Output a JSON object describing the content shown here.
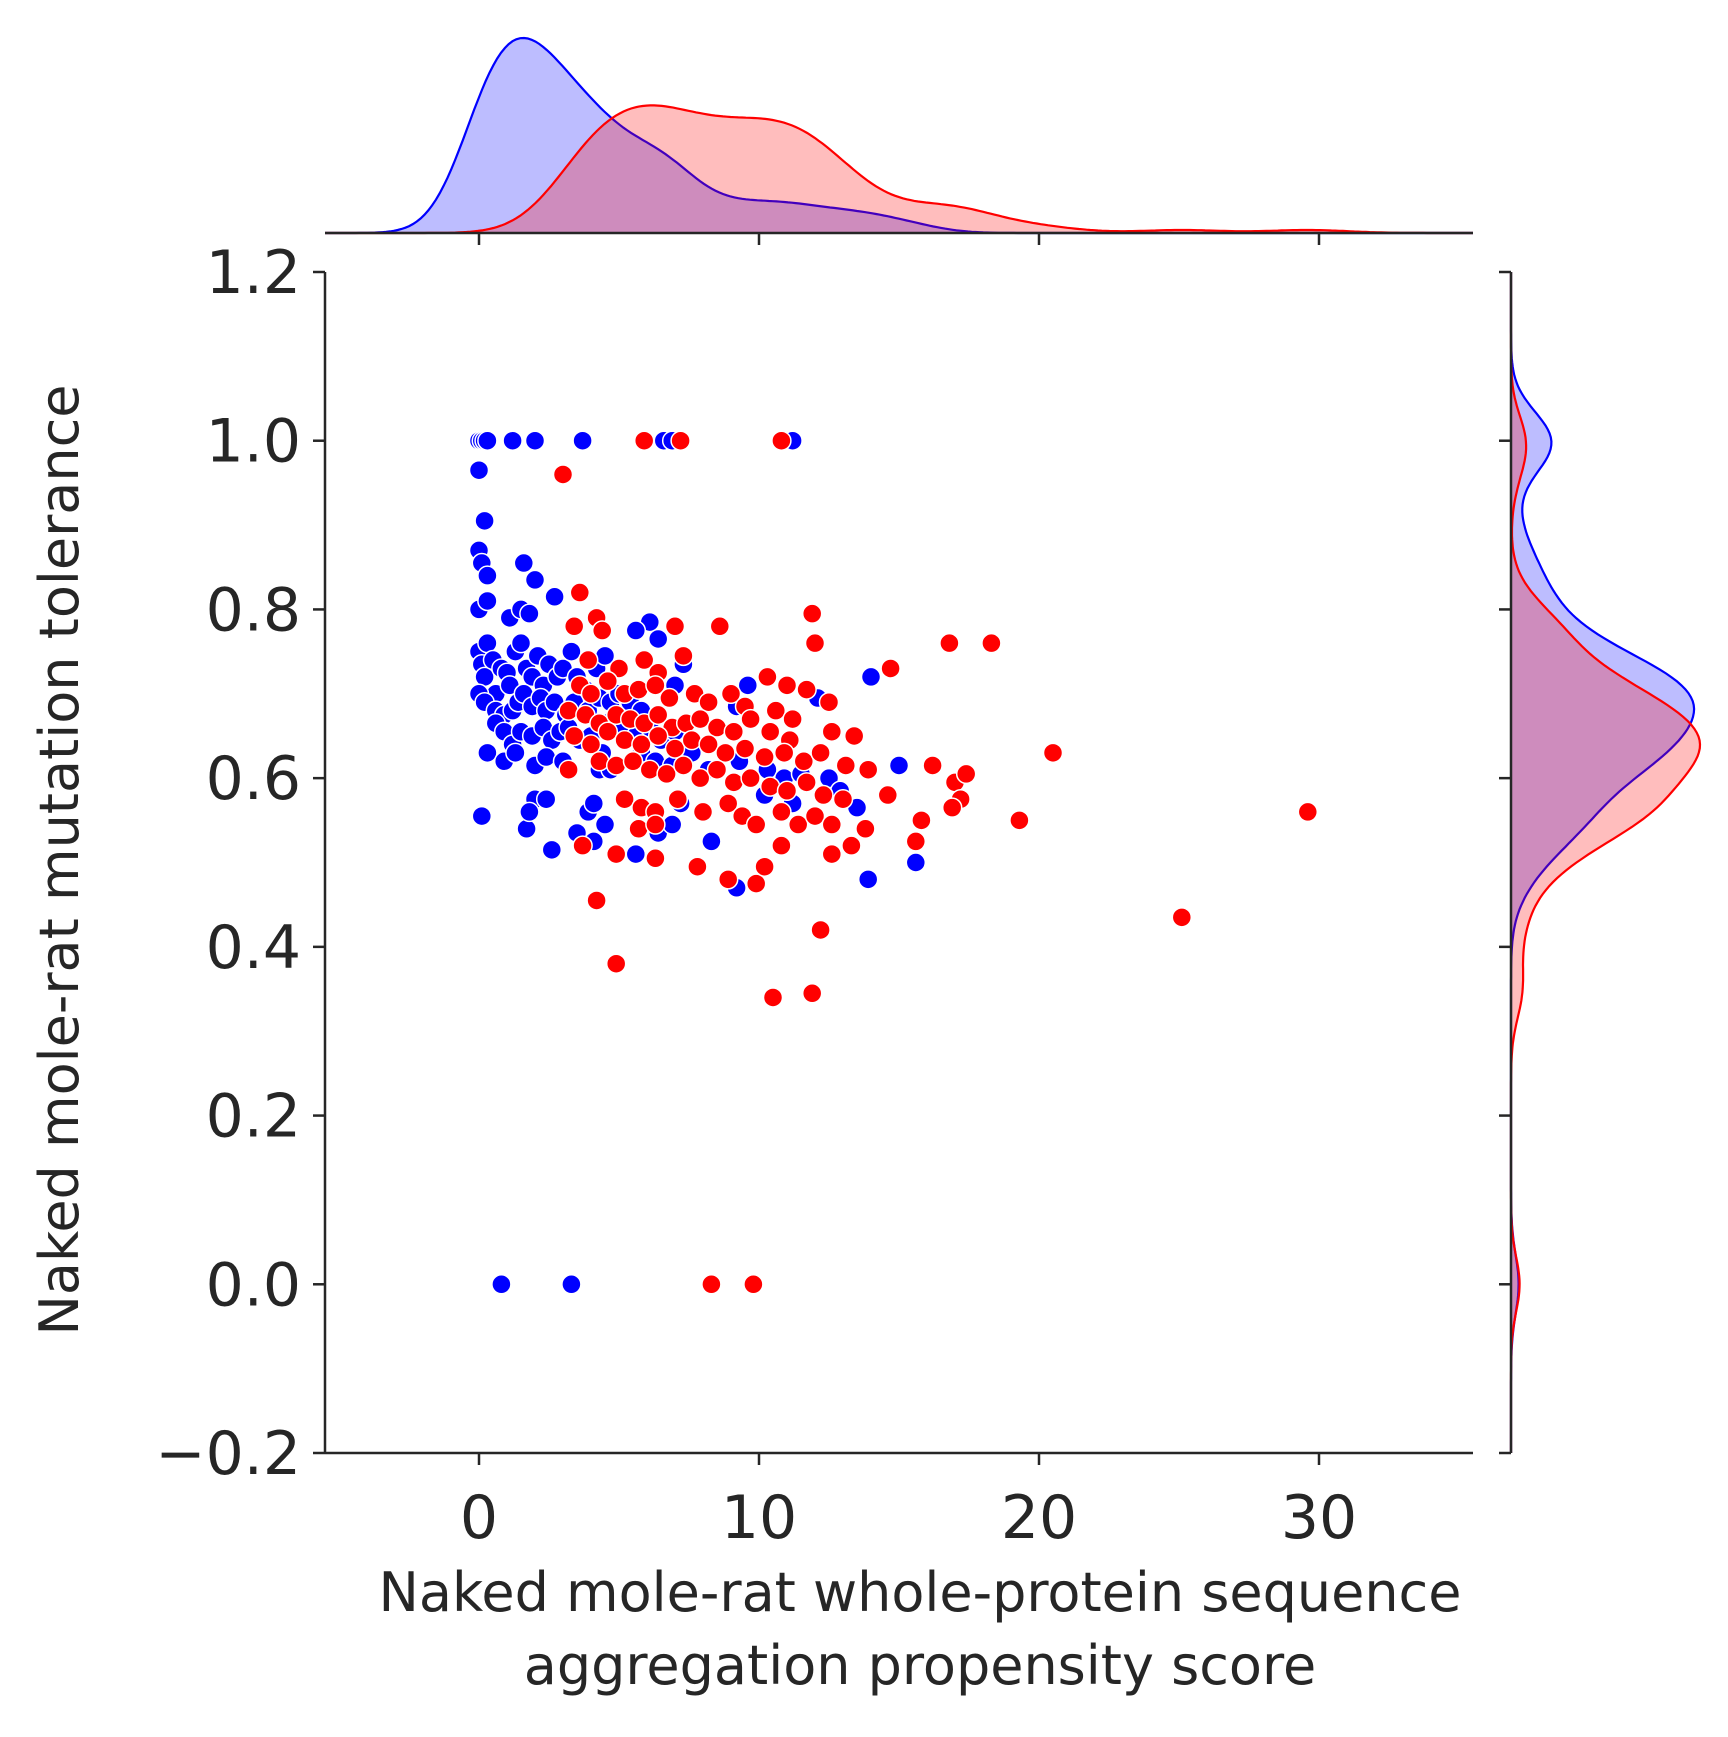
{
  "chart_data": {
    "type": "scatter",
    "title": "",
    "xlabel_lines": [
      "Naked mole-rat whole-protein sequence",
      "aggregation propensity score"
    ],
    "ylabel": "Naked mole-rat mutation tolerance",
    "xlim": [
      -5.5,
      35.5
    ],
    "ylim": [
      -0.2,
      1.2
    ],
    "x_ticks": [
      0,
      10,
      20,
      30
    ],
    "x_tick_labels": [
      "0",
      "10",
      "20",
      "30"
    ],
    "y_ticks": [
      -0.2,
      0.0,
      0.2,
      0.4,
      0.6,
      0.8,
      1.0,
      1.2
    ],
    "y_tick_labels": [
      "−0.2",
      "0.0",
      "0.2",
      "0.4",
      "0.6",
      "0.8",
      "1.0",
      "1.2"
    ],
    "grid": false,
    "legend": "none",
    "marginals": {
      "top": "kde-x",
      "right": "kde-y"
    },
    "series": [
      {
        "color": "#0000ff",
        "points": [
          [
            0.0,
            1.0
          ],
          [
            0.1,
            1.0
          ],
          [
            0.2,
            1.0
          ],
          [
            0.3,
            1.0
          ],
          [
            1.2,
            1.0
          ],
          [
            2.0,
            1.0
          ],
          [
            3.7,
            1.0
          ],
          [
            6.6,
            1.0
          ],
          [
            6.9,
            1.0
          ],
          [
            11.2,
            1.0
          ],
          [
            0.0,
            0.965
          ],
          [
            0.2,
            0.905
          ],
          [
            0.0,
            0.87
          ],
          [
            0.1,
            0.855
          ],
          [
            0.3,
            0.84
          ],
          [
            1.6,
            0.855
          ],
          [
            2.0,
            0.835
          ],
          [
            0.0,
            0.8
          ],
          [
            0.3,
            0.81
          ],
          [
            1.1,
            0.79
          ],
          [
            1.5,
            0.8
          ],
          [
            1.8,
            0.795
          ],
          [
            2.7,
            0.815
          ],
          [
            0.0,
            0.75
          ],
          [
            0.1,
            0.735
          ],
          [
            0.2,
            0.72
          ],
          [
            0.3,
            0.76
          ],
          [
            0.5,
            0.74
          ],
          [
            0.6,
            0.7
          ],
          [
            0.8,
            0.73
          ],
          [
            1.0,
            0.725
          ],
          [
            1.1,
            0.71
          ],
          [
            1.3,
            0.75
          ],
          [
            1.5,
            0.76
          ],
          [
            1.7,
            0.73
          ],
          [
            1.9,
            0.72
          ],
          [
            2.1,
            0.745
          ],
          [
            2.3,
            0.71
          ],
          [
            2.5,
            0.735
          ],
          [
            2.8,
            0.72
          ],
          [
            3.0,
            0.73
          ],
          [
            3.3,
            0.75
          ],
          [
            3.5,
            0.72
          ],
          [
            3.8,
            0.705
          ],
          [
            4.2,
            0.73
          ],
          [
            4.5,
            0.745
          ],
          [
            0.0,
            0.7
          ],
          [
            0.2,
            0.69
          ],
          [
            0.6,
            0.68
          ],
          [
            0.9,
            0.675
          ],
          [
            1.2,
            0.68
          ],
          [
            1.4,
            0.69
          ],
          [
            1.6,
            0.7
          ],
          [
            1.9,
            0.685
          ],
          [
            2.2,
            0.695
          ],
          [
            2.4,
            0.68
          ],
          [
            2.7,
            0.69
          ],
          [
            3.1,
            0.675
          ],
          [
            3.4,
            0.69
          ],
          [
            3.9,
            0.68
          ],
          [
            4.3,
            0.695
          ],
          [
            4.7,
            0.69
          ],
          [
            5.0,
            0.7
          ],
          [
            5.4,
            0.69
          ],
          [
            5.8,
            0.68
          ],
          [
            0.6,
            0.665
          ],
          [
            0.9,
            0.655
          ],
          [
            1.2,
            0.64
          ],
          [
            1.5,
            0.655
          ],
          [
            1.9,
            0.65
          ],
          [
            2.3,
            0.66
          ],
          [
            2.6,
            0.645
          ],
          [
            2.9,
            0.655
          ],
          [
            3.2,
            0.66
          ],
          [
            3.6,
            0.645
          ],
          [
            4.0,
            0.65
          ],
          [
            4.5,
            0.665
          ],
          [
            5.1,
            0.655
          ],
          [
            5.6,
            0.65
          ],
          [
            6.1,
            0.66
          ],
          [
            6.5,
            0.645
          ],
          [
            7.0,
            0.655
          ],
          [
            0.3,
            0.63
          ],
          [
            0.9,
            0.62
          ],
          [
            1.3,
            0.63
          ],
          [
            2.0,
            0.615
          ],
          [
            2.4,
            0.625
          ],
          [
            3.0,
            0.62
          ],
          [
            4.3,
            0.61
          ],
          [
            5.8,
            0.63
          ],
          [
            6.3,
            0.62
          ],
          [
            6.9,
            0.615
          ],
          [
            7.6,
            0.63
          ],
          [
            8.2,
            0.61
          ],
          [
            9.3,
            0.62
          ],
          [
            10.3,
            0.61
          ],
          [
            10.9,
            0.6
          ],
          [
            11.5,
            0.605
          ],
          [
            12.5,
            0.6
          ],
          [
            0.1,
            0.555
          ],
          [
            1.7,
            0.54
          ],
          [
            2.0,
            0.575
          ],
          [
            2.4,
            0.575
          ],
          [
            1.8,
            0.56
          ],
          [
            2.6,
            0.515
          ],
          [
            3.5,
            0.535
          ],
          [
            3.9,
            0.56
          ],
          [
            4.1,
            0.57
          ],
          [
            4.5,
            0.545
          ],
          [
            4.1,
            0.525
          ],
          [
            5.6,
            0.51
          ],
          [
            6.4,
            0.535
          ],
          [
            6.9,
            0.545
          ],
          [
            7.2,
            0.57
          ],
          [
            8.3,
            0.525
          ],
          [
            9.2,
            0.47
          ],
          [
            10.2,
            0.58
          ],
          [
            11.2,
            0.57
          ],
          [
            12.9,
            0.585
          ],
          [
            13.5,
            0.565
          ],
          [
            13.9,
            0.48
          ],
          [
            15.6,
            0.5
          ],
          [
            15.0,
            0.615
          ],
          [
            14.0,
            0.72
          ],
          [
            12.1,
            0.695
          ],
          [
            9.6,
            0.71
          ],
          [
            6.1,
            0.785
          ],
          [
            6.4,
            0.765
          ],
          [
            5.6,
            0.775
          ],
          [
            7.0,
            0.71
          ],
          [
            7.3,
            0.735
          ],
          [
            9.2,
            0.685
          ],
          [
            4.4,
            0.63
          ],
          [
            4.7,
            0.61
          ],
          [
            0.8,
            0.0
          ],
          [
            3.3,
            0.0
          ]
        ]
      },
      {
        "color": "#ff0000",
        "points": [
          [
            5.9,
            1.0
          ],
          [
            7.2,
            1.0
          ],
          [
            10.8,
            1.0
          ],
          [
            3.0,
            0.96
          ],
          [
            3.6,
            0.82
          ],
          [
            4.2,
            0.79
          ],
          [
            3.4,
            0.78
          ],
          [
            4.4,
            0.775
          ],
          [
            7.0,
            0.78
          ],
          [
            8.6,
            0.78
          ],
          [
            11.9,
            0.795
          ],
          [
            12.0,
            0.76
          ],
          [
            16.8,
            0.76
          ],
          [
            18.3,
            0.76
          ],
          [
            14.7,
            0.73
          ],
          [
            3.9,
            0.74
          ],
          [
            5.0,
            0.73
          ],
          [
            5.9,
            0.74
          ],
          [
            6.4,
            0.725
          ],
          [
            7.3,
            0.745
          ],
          [
            9.0,
            0.7
          ],
          [
            10.3,
            0.72
          ],
          [
            11.0,
            0.71
          ],
          [
            11.7,
            0.705
          ],
          [
            12.5,
            0.69
          ],
          [
            3.6,
            0.71
          ],
          [
            4.0,
            0.7
          ],
          [
            4.6,
            0.715
          ],
          [
            5.2,
            0.7
          ],
          [
            5.7,
            0.705
          ],
          [
            6.3,
            0.71
          ],
          [
            6.8,
            0.695
          ],
          [
            7.7,
            0.7
          ],
          [
            8.2,
            0.69
          ],
          [
            9.5,
            0.685
          ],
          [
            10.6,
            0.68
          ],
          [
            11.2,
            0.67
          ],
          [
            12.6,
            0.655
          ],
          [
            13.4,
            0.65
          ],
          [
            3.2,
            0.68
          ],
          [
            3.8,
            0.675
          ],
          [
            4.3,
            0.665
          ],
          [
            4.9,
            0.675
          ],
          [
            5.4,
            0.67
          ],
          [
            5.9,
            0.665
          ],
          [
            6.4,
            0.675
          ],
          [
            6.9,
            0.66
          ],
          [
            7.4,
            0.665
          ],
          [
            7.9,
            0.67
          ],
          [
            8.5,
            0.66
          ],
          [
            9.1,
            0.655
          ],
          [
            9.7,
            0.67
          ],
          [
            10.4,
            0.655
          ],
          [
            11.1,
            0.645
          ],
          [
            3.4,
            0.65
          ],
          [
            4.0,
            0.64
          ],
          [
            4.6,
            0.655
          ],
          [
            5.2,
            0.645
          ],
          [
            5.8,
            0.64
          ],
          [
            6.4,
            0.65
          ],
          [
            7.0,
            0.635
          ],
          [
            7.6,
            0.645
          ],
          [
            8.2,
            0.64
          ],
          [
            8.8,
            0.63
          ],
          [
            9.5,
            0.635
          ],
          [
            10.2,
            0.625
          ],
          [
            10.9,
            0.63
          ],
          [
            11.6,
            0.62
          ],
          [
            12.2,
            0.63
          ],
          [
            13.1,
            0.615
          ],
          [
            16.2,
            0.615
          ],
          [
            20.5,
            0.63
          ],
          [
            4.3,
            0.62
          ],
          [
            4.9,
            0.615
          ],
          [
            5.5,
            0.62
          ],
          [
            6.1,
            0.61
          ],
          [
            6.7,
            0.605
          ],
          [
            7.3,
            0.615
          ],
          [
            7.9,
            0.6
          ],
          [
            8.5,
            0.61
          ],
          [
            9.1,
            0.595
          ],
          [
            9.7,
            0.6
          ],
          [
            10.4,
            0.59
          ],
          [
            11.0,
            0.585
          ],
          [
            11.7,
            0.595
          ],
          [
            12.3,
            0.58
          ],
          [
            13.0,
            0.575
          ],
          [
            13.9,
            0.61
          ],
          [
            14.6,
            0.58
          ],
          [
            17.0,
            0.595
          ],
          [
            17.4,
            0.605
          ],
          [
            17.2,
            0.575
          ],
          [
            16.9,
            0.565
          ],
          [
            5.2,
            0.575
          ],
          [
            5.8,
            0.565
          ],
          [
            6.3,
            0.56
          ],
          [
            7.1,
            0.575
          ],
          [
            8.0,
            0.56
          ],
          [
            8.9,
            0.57
          ],
          [
            9.4,
            0.555
          ],
          [
            9.9,
            0.545
          ],
          [
            10.8,
            0.56
          ],
          [
            11.4,
            0.545
          ],
          [
            12.0,
            0.555
          ],
          [
            12.6,
            0.545
          ],
          [
            13.8,
            0.54
          ],
          [
            15.6,
            0.525
          ],
          [
            15.8,
            0.55
          ],
          [
            19.3,
            0.55
          ],
          [
            29.6,
            0.56
          ],
          [
            3.2,
            0.61
          ],
          [
            3.7,
            0.52
          ],
          [
            4.9,
            0.51
          ],
          [
            5.7,
            0.54
          ],
          [
            6.3,
            0.545
          ],
          [
            6.3,
            0.505
          ],
          [
            7.8,
            0.495
          ],
          [
            8.9,
            0.48
          ],
          [
            9.9,
            0.475
          ],
          [
            10.2,
            0.495
          ],
          [
            10.8,
            0.52
          ],
          [
            12.6,
            0.51
          ],
          [
            13.3,
            0.52
          ],
          [
            4.2,
            0.455
          ],
          [
            4.9,
            0.38
          ],
          [
            12.2,
            0.42
          ],
          [
            10.5,
            0.34
          ],
          [
            11.9,
            0.345
          ],
          [
            25.1,
            0.435
          ],
          [
            8.3,
            0.0
          ],
          [
            9.8,
            0.0
          ]
        ]
      }
    ]
  }
}
